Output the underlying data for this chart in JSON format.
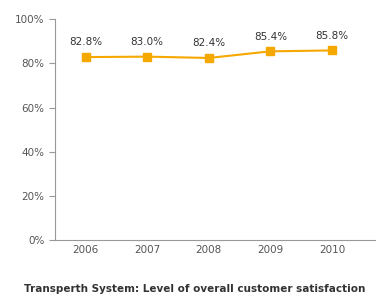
{
  "years": [
    2006,
    2007,
    2008,
    2009,
    2010
  ],
  "values": [
    0.828,
    0.83,
    0.824,
    0.854,
    0.858
  ],
  "labels": [
    "82.8%",
    "83.0%",
    "82.4%",
    "85.4%",
    "85.8%"
  ],
  "line_color": "#F5A800",
  "marker_color": "#F5A800",
  "marker_style": "s",
  "marker_size": 6,
  "line_width": 1.5,
  "ylim": [
    0,
    1.0
  ],
  "yticks": [
    0,
    0.2,
    0.4,
    0.6,
    0.8,
    1.0
  ],
  "ytick_labels": [
    "0%",
    "20%",
    "40%",
    "60%",
    "80%",
    "100%"
  ],
  "title": "Transperth System: Level of overall customer satisfaction",
  "title_fontsize": 7.5,
  "tick_fontsize": 7.5,
  "label_fontsize": 7.5,
  "background_color": "#ffffff",
  "spine_color": "#999999"
}
